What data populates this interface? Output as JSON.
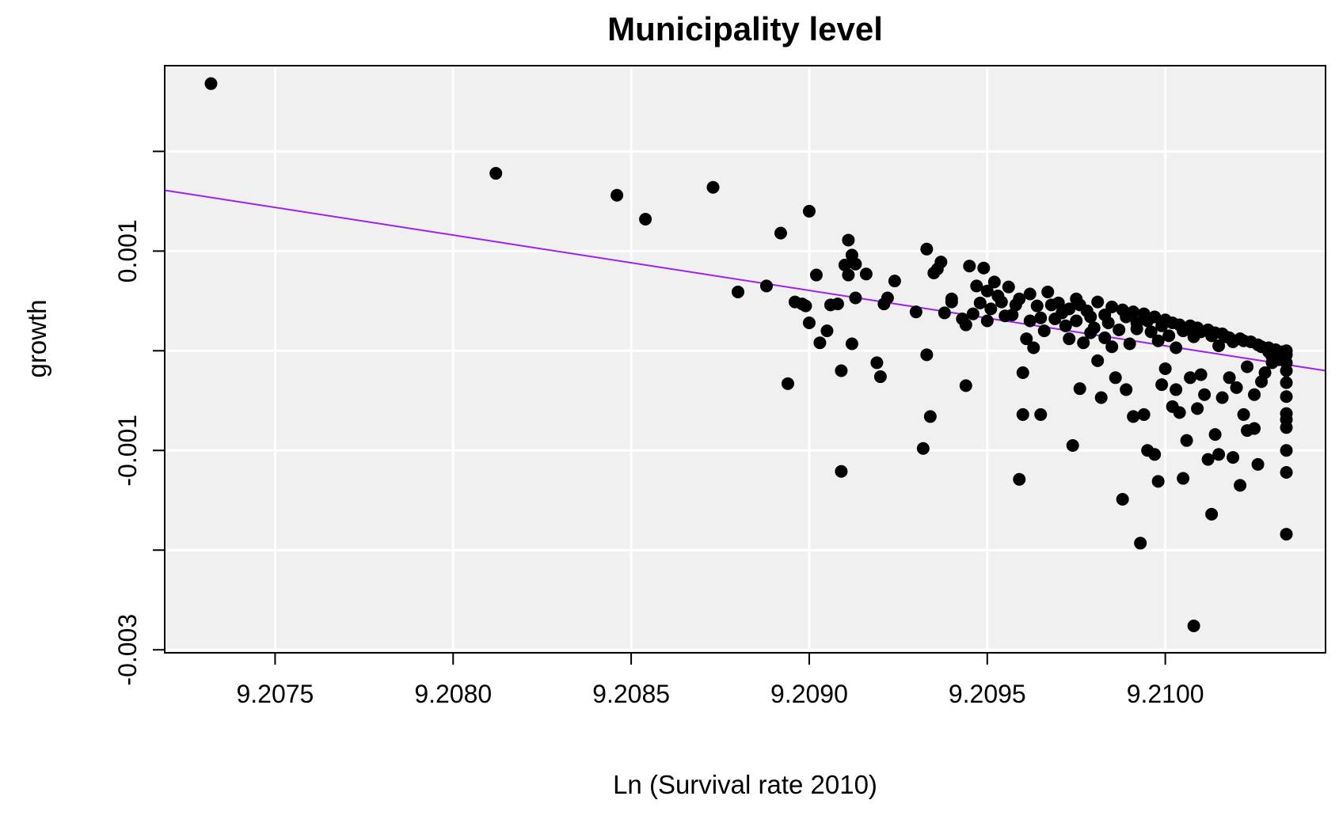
{
  "chart_data": {
    "type": "scatter",
    "title": "Municipality level",
    "xlabel": "Ln (Survival rate 2010)",
    "ylabel": "growth",
    "xlim": [
      9.20719,
      9.21045
    ],
    "ylim": [
      -0.00303,
      0.00286
    ],
    "x_ticks": [
      9.2075,
      9.208,
      9.2085,
      9.209,
      9.2095,
      9.21
    ],
    "x_tick_labels": [
      "9.2075",
      "9.2080",
      "9.2085",
      "9.2090",
      "9.2095",
      "9.2100"
    ],
    "y_ticks": [
      -0.003,
      -0.002,
      -0.001,
      0.0,
      0.001,
      0.002
    ],
    "y_tick_labels": [
      "-0.003",
      "",
      "-0.001",
      "",
      "0.001",
      ""
    ],
    "grid": true,
    "background": "#f0f0f0",
    "point_color": "#000000",
    "fit_line": {
      "color": "#a020f0",
      "x": [
        9.20719,
        9.21045
      ],
      "y": [
        0.00161,
        -0.0002
      ]
    },
    "points": [
      [
        9.20732,
        0.00268
      ],
      [
        9.20812,
        0.00178
      ],
      [
        9.20846,
        0.00156
      ],
      [
        9.20854,
        0.00132
      ],
      [
        9.20873,
        0.00164
      ],
      [
        9.2088,
        0.00059
      ],
      [
        9.20888,
        0.00065
      ],
      [
        9.20892,
        0.00118
      ],
      [
        9.20894,
        -0.00033
      ],
      [
        9.20896,
        0.00049
      ],
      [
        9.20898,
        0.00047
      ],
      [
        9.20899,
        0.00045
      ],
      [
        9.209,
        0.00028
      ],
      [
        9.209,
        0.0014
      ],
      [
        9.20902,
        0.00076
      ],
      [
        9.20903,
        8e-05
      ],
      [
        9.20905,
        0.0002
      ],
      [
        9.20906,
        0.00046
      ],
      [
        9.20908,
        0.00047
      ],
      [
        9.20909,
        -0.00121
      ],
      [
        9.20909,
        -0.0002
      ],
      [
        9.2091,
        0.00086
      ],
      [
        9.20911,
        0.00111
      ],
      [
        9.20911,
        0.00076
      ],
      [
        9.20912,
        0.00096
      ],
      [
        9.20912,
        7e-05
      ],
      [
        9.20913,
        0.00053
      ],
      [
        9.20913,
        0.00087
      ],
      [
        9.20916,
        0.00077
      ],
      [
        9.20919,
        -0.00012
      ],
      [
        9.2092,
        -0.00026
      ],
      [
        9.20921,
        0.00047
      ],
      [
        9.20922,
        0.00053
      ],
      [
        9.20924,
        0.0007
      ],
      [
        9.2093,
        0.00039
      ],
      [
        9.20932,
        -0.00098
      ],
      [
        9.20933,
        0.00102
      ],
      [
        9.20933,
        -4e-05
      ],
      [
        9.20934,
        -0.00066
      ],
      [
        9.20935,
        0.00078
      ],
      [
        9.20936,
        0.00082
      ],
      [
        9.20937,
        0.00089
      ],
      [
        9.20938,
        0.00038
      ],
      [
        9.2094,
        0.00049
      ],
      [
        9.2094,
        0.00052
      ],
      [
        9.20943,
        0.00032
      ],
      [
        9.20944,
        0.00026
      ],
      [
        9.20944,
        -0.00035
      ],
      [
        9.20945,
        0.00085
      ],
      [
        9.20946,
        0.00037
      ],
      [
        9.20947,
        0.00065
      ],
      [
        9.20948,
        0.00048
      ],
      [
        9.20949,
        0.00083
      ],
      [
        9.2095,
        0.0006
      ],
      [
        9.2095,
        0.0003
      ],
      [
        9.20951,
        0.00042
      ],
      [
        9.20952,
        0.00069
      ],
      [
        9.20953,
        0.00055
      ],
      [
        9.20954,
        0.00049
      ],
      [
        9.20955,
        0.00035
      ],
      [
        9.20956,
        0.00064
      ],
      [
        9.20957,
        0.00036
      ],
      [
        9.20958,
        0.00046
      ],
      [
        9.20959,
        -0.00129
      ],
      [
        9.20959,
        0.00052
      ],
      [
        9.2096,
        -0.00022
      ],
      [
        9.2096,
        -0.00064
      ],
      [
        9.20961,
        0.00012
      ],
      [
        9.20962,
        0.0003
      ],
      [
        9.20962,
        0.00057
      ],
      [
        9.20963,
        3e-05
      ],
      [
        9.20964,
        0.00045
      ],
      [
        9.20965,
        -0.00064
      ],
      [
        9.20965,
        0.00033
      ],
      [
        9.20966,
        0.0002
      ],
      [
        9.20967,
        0.00059
      ],
      [
        9.20968,
        0.00046
      ],
      [
        9.20969,
        0.00032
      ],
      [
        9.2097,
        0.00048
      ],
      [
        9.20971,
        0.00038
      ],
      [
        9.20972,
        0.00025
      ],
      [
        9.20973,
        0.00042
      ],
      [
        9.20973,
        0.00012
      ],
      [
        9.20974,
        -0.00095
      ],
      [
        9.20975,
        0.00052
      ],
      [
        9.20975,
        0.0003
      ],
      [
        9.20976,
        0.00046
      ],
      [
        9.20976,
        -0.00038
      ],
      [
        9.20977,
        8e-05
      ],
      [
        9.20978,
        0.0004
      ],
      [
        9.20979,
        0.00034
      ],
      [
        9.20979,
        0.00018
      ],
      [
        9.2098,
        0.00023
      ],
      [
        9.20981,
        0.00049
      ],
      [
        9.20981,
        -0.0001
      ],
      [
        9.20982,
        -0.00047
      ],
      [
        9.20983,
        0.00036
      ],
      [
        9.20983,
        0.00013
      ],
      [
        9.20984,
        0.00028
      ],
      [
        9.20985,
        0.00044
      ],
      [
        9.20985,
        4e-05
      ],
      [
        9.20986,
        -0.00027
      ],
      [
        9.20987,
        0.00021
      ],
      [
        9.20988,
        -0.00149
      ],
      [
        9.20988,
        0.00041
      ],
      [
        9.20989,
        0.00034
      ],
      [
        9.20989,
        -0.00039
      ],
      [
        9.2099,
        7e-05
      ],
      [
        9.20991,
        0.00039
      ],
      [
        9.20991,
        -0.00066
      ],
      [
        9.20992,
        0.00022
      ],
      [
        9.20992,
        0.00028
      ],
      [
        9.20993,
        -0.00193
      ],
      [
        9.20994,
        0.00037
      ],
      [
        9.20994,
        -0.00064
      ],
      [
        9.20995,
        -0.001
      ],
      [
        9.20995,
        0.0003
      ],
      [
        9.20996,
        0.00019
      ],
      [
        9.20997,
        -0.00104
      ],
      [
        9.20997,
        0.00034
      ],
      [
        9.20998,
        -0.00131
      ],
      [
        9.20998,
        0.0001
      ],
      [
        9.20999,
        0.00025
      ],
      [
        9.20999,
        -0.00034
      ],
      [
        9.21,
        0.00031
      ],
      [
        9.21,
        -0.00018
      ],
      [
        9.21001,
        0.00015
      ],
      [
        9.21002,
        -0.00056
      ],
      [
        9.21002,
        0.00028
      ],
      [
        9.21003,
        3e-05
      ],
      [
        9.21003,
        -0.00039
      ],
      [
        9.21004,
        0.00026
      ],
      [
        9.21004,
        -0.00062
      ],
      [
        9.21005,
        0.0002
      ],
      [
        9.21005,
        -0.00128
      ],
      [
        9.21006,
        0.00022
      ],
      [
        9.21006,
        -0.0009
      ],
      [
        9.21007,
        0.00025
      ],
      [
        9.21007,
        -0.00027
      ],
      [
        9.21008,
        -0.00276
      ],
      [
        9.21008,
        0.00014
      ],
      [
        9.21009,
        -0.00058
      ],
      [
        9.21009,
        0.00023
      ],
      [
        9.2101,
        -0.00024
      ],
      [
        9.2101,
        0.00019
      ],
      [
        9.21011,
        -0.00044
      ],
      [
        9.21012,
        0.00021
      ],
      [
        9.21012,
        -0.00109
      ],
      [
        9.21013,
        0.00015
      ],
      [
        9.21013,
        -0.00164
      ],
      [
        9.21014,
        -0.00084
      ],
      [
        9.21014,
        0.00018
      ],
      [
        9.21015,
        -0.00104
      ],
      [
        9.21015,
        5e-05
      ],
      [
        9.21016,
        0.00017
      ],
      [
        9.21016,
        -0.00047
      ],
      [
        9.21017,
        0.00014
      ],
      [
        9.21018,
        -0.00027
      ],
      [
        9.21018,
        0.00013
      ],
      [
        9.21019,
        -0.00107
      ],
      [
        9.21019,
        9e-05
      ],
      [
        9.2102,
        -0.00037
      ],
      [
        9.21021,
        0.00012
      ],
      [
        9.21021,
        -0.00135
      ],
      [
        9.21022,
        -0.00064
      ],
      [
        9.21022,
        0.0001
      ],
      [
        9.21023,
        -0.0008
      ],
      [
        9.21023,
        -0.00016
      ],
      [
        9.21024,
        9e-05
      ],
      [
        9.21025,
        -0.00078
      ],
      [
        9.21025,
        -0.00044
      ],
      [
        9.21026,
        6e-05
      ],
      [
        9.21026,
        -0.00114
      ],
      [
        9.21027,
        -0.00031
      ],
      [
        9.21027,
        4e-05
      ],
      [
        9.21028,
        -0.00022
      ],
      [
        9.21029,
        -1e-05
      ],
      [
        9.21029,
        3e-05
      ],
      [
        9.2103,
        -0.00012
      ],
      [
        9.2103,
        -6e-05
      ],
      [
        9.21031,
        1e-05
      ],
      [
        9.21032,
        -9e-05
      ],
      [
        9.21032,
        -3e-05
      ],
      [
        9.21033,
        -1e-05
      ],
      [
        9.21034,
        0.0
      ],
      [
        9.21034,
        -0.00046
      ],
      [
        9.21034,
        -0.00063
      ],
      [
        9.21034,
        -0.00069
      ],
      [
        9.21034,
        -0.00077
      ],
      [
        9.21034,
        -0.001
      ],
      [
        9.21034,
        -0.00122
      ],
      [
        9.21034,
        -0.00184
      ],
      [
        9.21034,
        -0.0002
      ],
      [
        9.21034,
        -0.00032
      ],
      [
        9.21034,
        -0.00012
      ],
      [
        9.21034,
        -4e-05
      ]
    ]
  }
}
